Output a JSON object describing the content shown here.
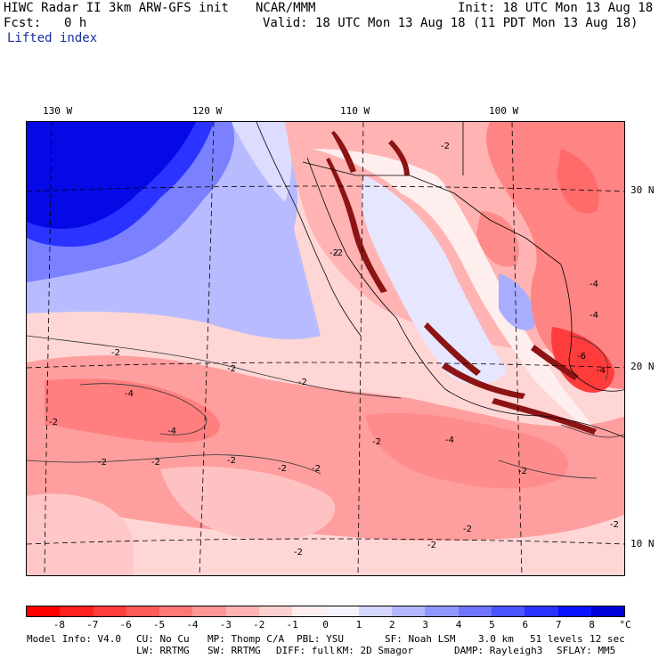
{
  "header": {
    "title": "HIWC Radar II 3km ARW-GFS init",
    "center": "NCAR/MMM",
    "init": "Init: 18 UTC Mon 13 Aug 18",
    "fcst_label": "Fcst:",
    "fcst_value": "0 h",
    "valid": "Valid: 18 UTC Mon 13 Aug 18 (11 PDT Mon 13 Aug 18)",
    "field": "Lifted index"
  },
  "map": {
    "lon_labels": [
      "130 W",
      "120 W",
      "110 W",
      "100 W"
    ],
    "lat_labels": [
      "30 N",
      "20 N",
      "10 N"
    ],
    "contour_labels": [
      "-2",
      "-2",
      "-2",
      "-2",
      "-2",
      "-2",
      "-4",
      "-4",
      "-4",
      "-4",
      "-4",
      "-2",
      "-2",
      "-2",
      "-2",
      "-2",
      "-2",
      "-2",
      "-2",
      "-2",
      "-2",
      "-4",
      "-6",
      "-2",
      "-2"
    ]
  },
  "color_scale": {
    "ticks": [
      "-8",
      "-7",
      "-6",
      "-5",
      "-4",
      "-3",
      "-2",
      "-1",
      "0",
      "1",
      "2",
      "3",
      "4",
      "5",
      "6",
      "7",
      "8"
    ],
    "unit": "°C",
    "colors": [
      "#ff0000",
      "#ff1f1f",
      "#ff3c3c",
      "#ff5a5a",
      "#ff7777",
      "#ff9595",
      "#ffb3b3",
      "#ffd0d0",
      "#ffeeee",
      "#f4f4ff",
      "#d4d6ff",
      "#b3b7ff",
      "#9196ff",
      "#6f75ff",
      "#4c54ff",
      "#2a33ff",
      "#0a12ff",
      "#0000d8"
    ]
  },
  "footer": {
    "line1": [
      "Model Info: V4.0",
      "CU: No Cu",
      "MP: Thomp C/A",
      "PBL: YSU",
      "SF: Noah LSM",
      "3.0 km",
      "51 levels",
      "12 sec"
    ],
    "line2": [
      "LW: RRTMG",
      "SW: RRTMG",
      "DIFF: full",
      "KM: 2D Smagor",
      "DAMP: Rayleigh3",
      "SFLAY: MM5"
    ]
  }
}
